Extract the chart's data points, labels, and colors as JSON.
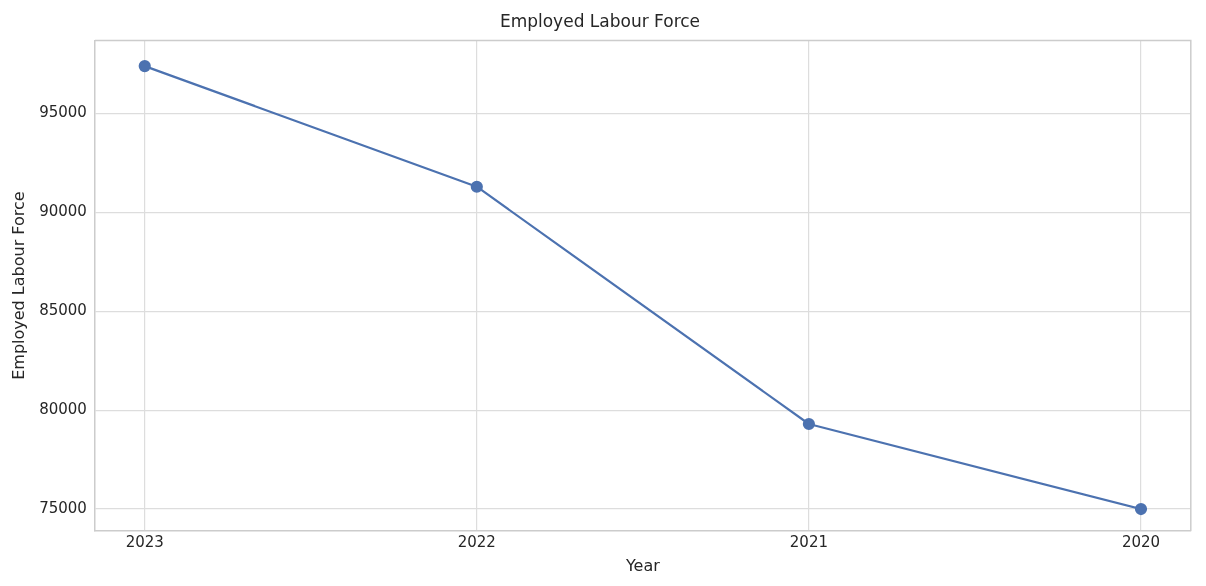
{
  "chart_data": {
    "type": "line",
    "title": "Employed Labour Force",
    "xlabel": "Year",
    "ylabel": "Employed Labour Force",
    "categories": [
      "2023",
      "2022",
      "2021",
      "2020"
    ],
    "series": [
      {
        "color": "#4c72b0",
        "values": [
          97400,
          91300,
          79300,
          75000
        ]
      }
    ],
    "ylim": [
      73900,
      98700
    ],
    "yticks": [
      75000,
      80000,
      85000,
      90000,
      95000
    ],
    "grid": true,
    "marker": "circle",
    "line_style": "solid"
  }
}
